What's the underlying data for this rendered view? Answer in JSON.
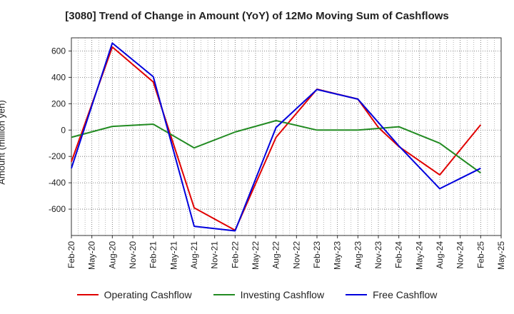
{
  "chart_data": {
    "type": "line",
    "title": "[3080]  Trend of Change in Amount (YoY) of 12Mo Moving Sum of Cashflows",
    "xlabel": "",
    "ylabel": "Amount (million yen)",
    "categories": [
      "Feb-20",
      "May-20",
      "Aug-20",
      "Nov-20",
      "Feb-21",
      "May-21",
      "Aug-21",
      "Nov-21",
      "Feb-22",
      "May-22",
      "Aug-22",
      "Nov-22",
      "Feb-23",
      "May-23",
      "Aug-23",
      "Nov-23",
      "Feb-24",
      "May-24",
      "Aug-24",
      "Nov-24",
      "Feb-25",
      "May-25"
    ],
    "ylim": [
      -800,
      700
    ],
    "yticks": [
      -600,
      -400,
      -200,
      0,
      200,
      400,
      600
    ],
    "grid": true,
    "legend": "bottom",
    "series": [
      {
        "name": "Operating Cashflow",
        "color": "#e00000",
        "points": [
          [
            "Feb-20",
            -240
          ],
          [
            "Aug-20",
            630
          ],
          [
            "Feb-21",
            365
          ],
          [
            "Aug-21",
            -590
          ],
          [
            "Feb-22",
            -760
          ],
          [
            "Aug-22",
            -55
          ],
          [
            "Feb-23",
            310
          ],
          [
            "Aug-23",
            235
          ],
          [
            "Nov-23",
            20
          ],
          [
            "Feb-24",
            -125
          ],
          [
            "Aug-24",
            -340
          ],
          [
            "Feb-25",
            40
          ]
        ]
      },
      {
        "name": "Investing Cashflow",
        "color": "#228b22",
        "points": [
          [
            "Feb-20",
            -55
          ],
          [
            "Aug-20",
            28
          ],
          [
            "Feb-21",
            45
          ],
          [
            "Aug-21",
            -135
          ],
          [
            "Feb-22",
            -15
          ],
          [
            "Aug-22",
            72
          ],
          [
            "Feb-23",
            0
          ],
          [
            "Aug-23",
            0
          ],
          [
            "Feb-24",
            25
          ],
          [
            "Aug-24",
            -100
          ],
          [
            "Feb-25",
            -325
          ]
        ]
      },
      {
        "name": "Free Cashflow",
        "color": "#0000dd",
        "points": [
          [
            "Feb-20",
            -290
          ],
          [
            "Aug-20",
            660
          ],
          [
            "Feb-21",
            405
          ],
          [
            "Aug-21",
            -730
          ],
          [
            "Feb-22",
            -765
          ],
          [
            "Aug-22",
            20
          ],
          [
            "Feb-23",
            308
          ],
          [
            "Aug-23",
            235
          ],
          [
            "Feb-24",
            -120
          ],
          [
            "Aug-24",
            -445
          ],
          [
            "Feb-25",
            -290
          ]
        ]
      }
    ]
  }
}
